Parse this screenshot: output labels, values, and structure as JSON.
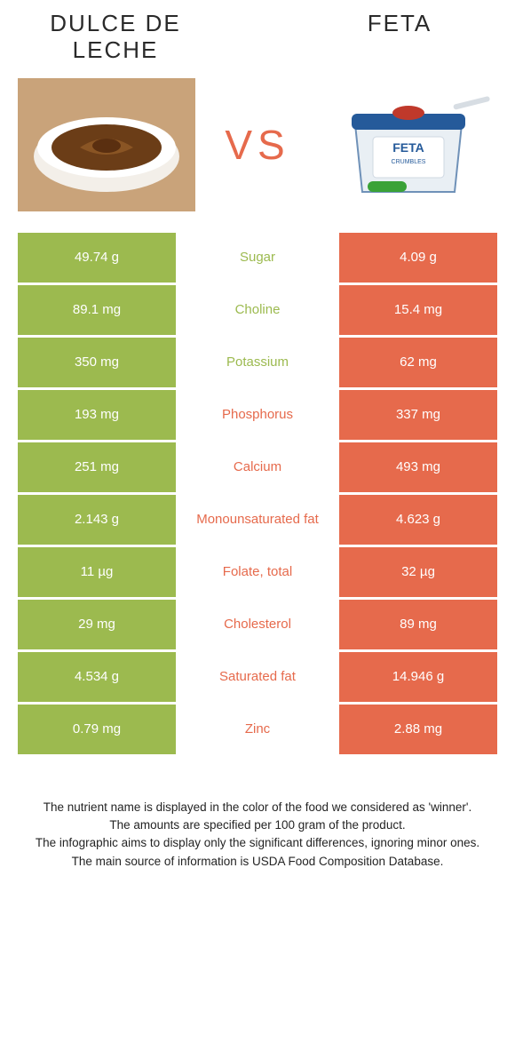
{
  "colors": {
    "left": "#9cba4f",
    "right": "#e66a4c",
    "vs": "#e66a4c",
    "row_text": "#ffffff",
    "footer_text": "#242424",
    "bg": "#ffffff"
  },
  "header": {
    "left_name": "Dulce de Leche",
    "right_name": "Feta",
    "vs_label": "VS"
  },
  "comparison": {
    "type": "table",
    "rows": [
      {
        "nutrient": "Sugar",
        "left": "49.74 g",
        "right": "4.09 g",
        "winner": "left"
      },
      {
        "nutrient": "Choline",
        "left": "89.1 mg",
        "right": "15.4 mg",
        "winner": "left"
      },
      {
        "nutrient": "Potassium",
        "left": "350 mg",
        "right": "62 mg",
        "winner": "left"
      },
      {
        "nutrient": "Phosphorus",
        "left": "193 mg",
        "right": "337 mg",
        "winner": "right"
      },
      {
        "nutrient": "Calcium",
        "left": "251 mg",
        "right": "493 mg",
        "winner": "right"
      },
      {
        "nutrient": "Monounsaturated fat",
        "left": "2.143 g",
        "right": "4.623 g",
        "winner": "right"
      },
      {
        "nutrient": "Folate, total",
        "left": "11 µg",
        "right": "32 µg",
        "winner": "right"
      },
      {
        "nutrient": "Cholesterol",
        "left": "29 mg",
        "right": "89 mg",
        "winner": "right"
      },
      {
        "nutrient": "Saturated fat",
        "left": "4.534 g",
        "right": "14.946 g",
        "winner": "right"
      },
      {
        "nutrient": "Zinc",
        "left": "0.79 mg",
        "right": "2.88 mg",
        "winner": "right"
      }
    ]
  },
  "notes": {
    "line1": "The nutrient name is displayed in the color of the food we considered as 'winner'.",
    "line2": "The amounts are specified per 100 gram of the product.",
    "line3": "The infographic aims to display only the significant differences, ignoring minor ones.",
    "line4": "The main source of information is USDA Food Composition Database."
  }
}
